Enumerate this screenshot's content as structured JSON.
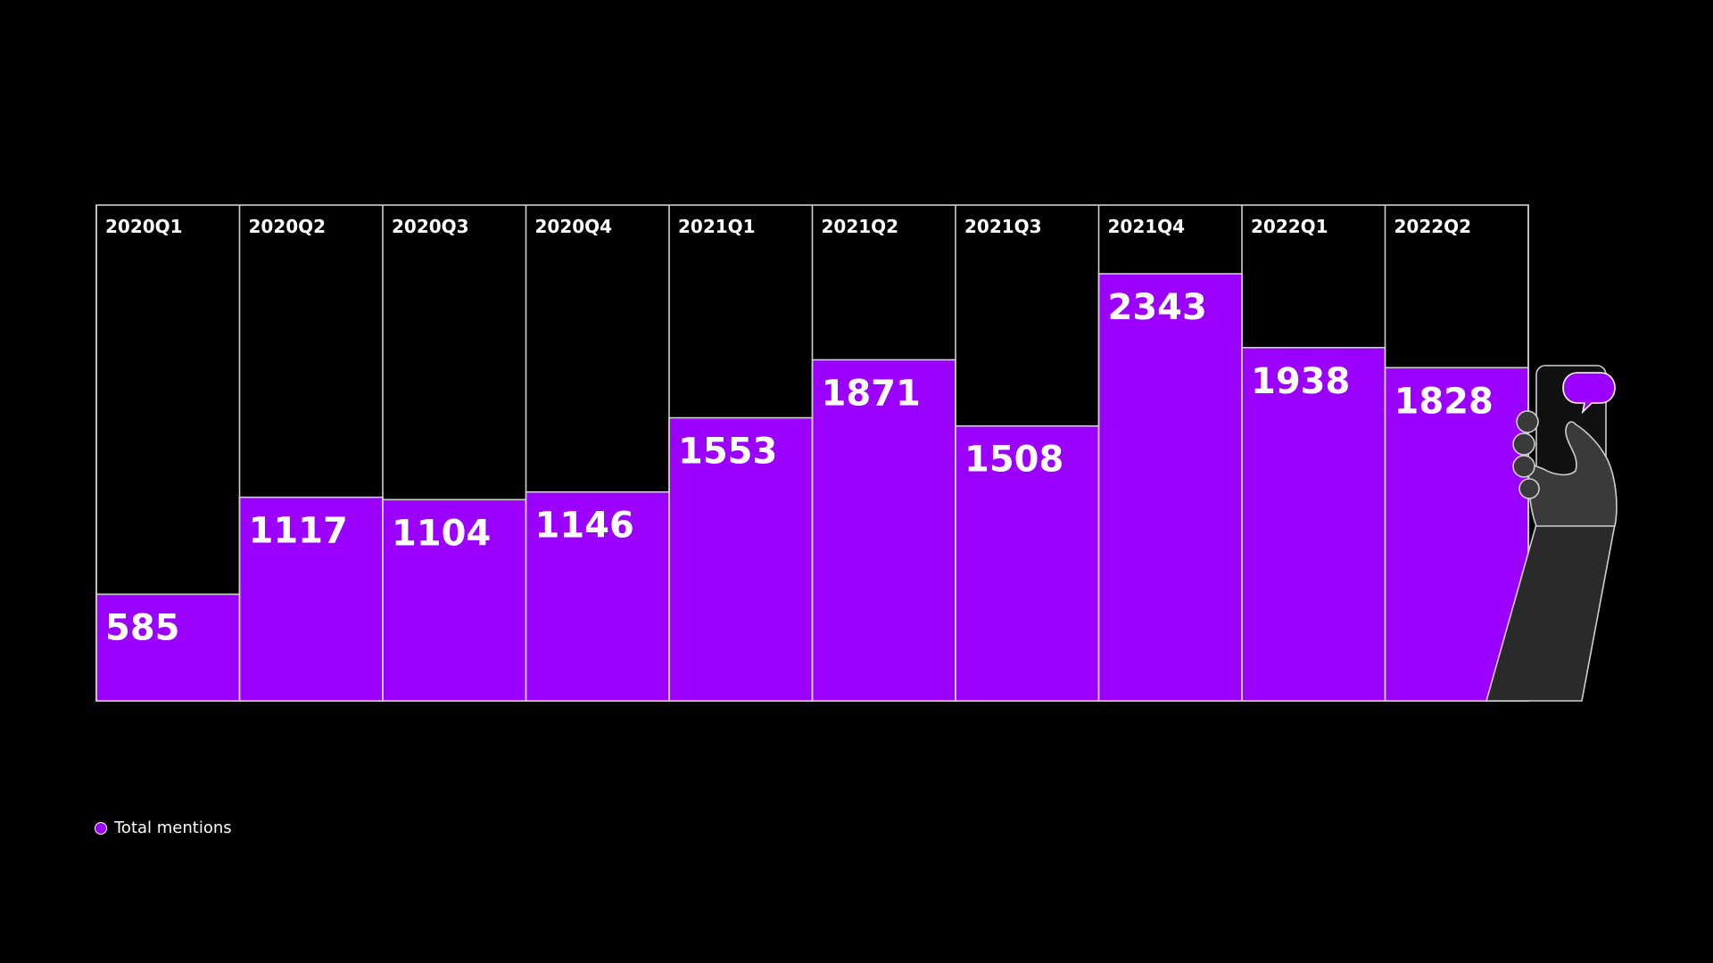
{
  "chart_data": {
    "type": "bar",
    "categories": [
      "2020Q1",
      "2020Q2",
      "2020Q3",
      "2020Q4",
      "2021Q1",
      "2021Q2",
      "2021Q3",
      "2021Q4",
      "2022Q1",
      "2022Q2"
    ],
    "series": [
      {
        "name": "Total mentions",
        "values": [
          585,
          1117,
          1104,
          1146,
          1553,
          1871,
          1508,
          2343,
          1938,
          1828
        ]
      }
    ],
    "ylim": [
      0,
      2720
    ],
    "grid": false,
    "legend": "bottom-left",
    "colors": {
      "bar": "#9b00ff",
      "background": "#000000",
      "outline": "#cfcfcf",
      "text": "#ffffff"
    }
  },
  "illustration": {
    "icon": "hand-holding-phone-icon",
    "bubble_icon": "chat-bubble-icon"
  }
}
